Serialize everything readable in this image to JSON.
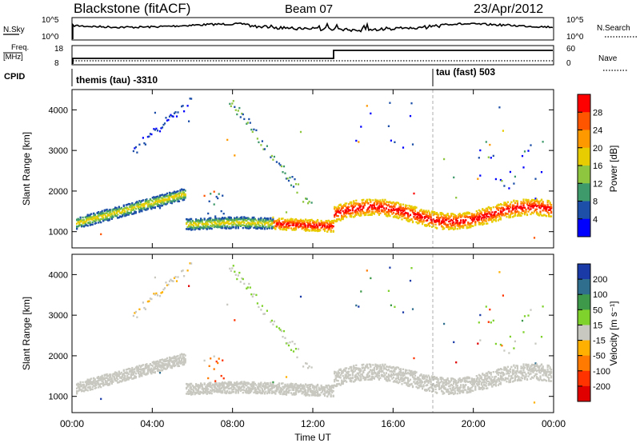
{
  "header": {
    "station": "Blackstone (fitACF)",
    "beam": "Beam 07",
    "date": "23/Apr/2012"
  },
  "noise_panel": {
    "left_label": "N.Sky",
    "right_label": "N.Search",
    "left_ticks": [
      "10^5",
      "10^0"
    ],
    "right_ticks": [
      "10^5",
      "10^0"
    ]
  },
  "freq_panel": {
    "left_label_top": "Freq.",
    "left_label_unit": "[MHz]",
    "right_label": "Nave",
    "cpid_label": "CPID",
    "left_ticks": [
      "18",
      "8"
    ],
    "right_ticks": [
      "60",
      "0"
    ]
  },
  "cpid": {
    "first": "themis (tau) -3310",
    "second": "tau (fast) 503"
  },
  "chart_data": [
    {
      "type": "heatmap",
      "title": "",
      "ylabel": "Slant Range [km]",
      "xlabel": "",
      "y_ticks": [
        1000,
        2000,
        3000,
        4000
      ],
      "ylim": [
        600,
        4500
      ],
      "xlim": [
        0,
        24
      ],
      "colorbar_label": "Power [dB]",
      "colorbar_ticks": [
        "28",
        "24",
        "20",
        "16",
        "12",
        "8",
        "4"
      ],
      "colorbar_colors": [
        "#ff0000",
        "#ff5500",
        "#ff9900",
        "#e6cc00",
        "#8fc63f",
        "#3f9a6b",
        "#1d4fa8",
        "#0000ff"
      ],
      "scatter_bands": [
        {
          "t0": 0.2,
          "t1": 5.6,
          "r0": 1150,
          "r1": 2000,
          "note": "rising band"
        },
        {
          "t0": 3.0,
          "t1": 6.0,
          "r0": 3000,
          "r1": 4300
        },
        {
          "t0": 6.7,
          "t1": 7.6,
          "r0": 1200,
          "r1": 2000
        },
        {
          "t0": 7.8,
          "t1": 12.0,
          "r0": 4300,
          "r1": 1600
        },
        {
          "t0": 9.9,
          "t1": 12.8,
          "r0": 1400,
          "r1": 1000
        },
        {
          "t0": 13.0,
          "t1": 23.9,
          "r0": 1300,
          "r1": 1900
        }
      ]
    },
    {
      "type": "heatmap",
      "title": "",
      "ylabel": "Slant Range [km]",
      "xlabel": "Time UT",
      "x_ticks": [
        "00:00",
        "04:00",
        "08:00",
        "12:00",
        "16:00",
        "20:00",
        "00:00"
      ],
      "y_ticks": [
        1000,
        2000,
        3000,
        4000
      ],
      "ylim": [
        600,
        4500
      ],
      "xlim": [
        0,
        24
      ],
      "colorbar_label": "Velocity [m s⁻¹]",
      "colorbar_ticks": [
        "200",
        "100",
        "50",
        "15",
        "-15",
        "-50",
        "-100",
        "-200"
      ],
      "colorbar_colors": [
        "#1a3aa8",
        "#2f6e8c",
        "#3e9a4a",
        "#7fd12c",
        "#c8c8c0",
        "#ffb000",
        "#ff7a00",
        "#ff3300",
        "#e00000"
      ]
    }
  ]
}
